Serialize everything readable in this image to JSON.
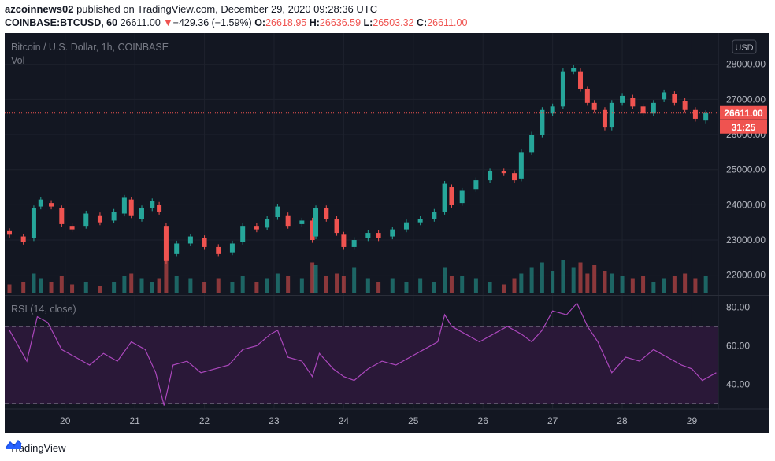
{
  "header": {
    "user": "azcoinnews02",
    "published_text": "published on TradingView.com, December 29, 2020 09:28:36 UTC",
    "symbol": "COINBASE:BTCUSD, 60",
    "last": "26611.00",
    "change_arrow": "▼",
    "change": "−429.36 (−1.59%)",
    "o_label": "O:",
    "o_val": "26618.95",
    "h_label": "H:",
    "h_val": "26636.59",
    "l_label": "L:",
    "l_val": "26503.32",
    "c_label": "C:",
    "c_val": "26611.00"
  },
  "chart_legend": {
    "title": "Bitcoin / U.S. Dollar, 1h, COINBASE",
    "vol": "Vol",
    "rsi": "RSI (14, close)",
    "currency_badge": "USD"
  },
  "price_tags": {
    "last": "26611.00",
    "countdown": "31:25"
  },
  "footer": {
    "brand": "TradingView",
    "logo_icon": "tradingview-logo-icon"
  },
  "colors": {
    "background": "#131722",
    "up": "#26a69a",
    "down": "#ef5350",
    "rsi_line": "#ab47bc",
    "rsi_band": "#2a1838",
    "axis_text": "#b2b5be"
  },
  "chart_data": [
    {
      "type": "candlestick",
      "title": "Bitcoin / U.S. Dollar, 1h, COINBASE",
      "x_ticks": [
        "20",
        "21",
        "22",
        "23",
        "24",
        "25",
        "26",
        "27",
        "28",
        "29"
      ],
      "y_ticks": [
        "22000.00",
        "23000.00",
        "24000.00",
        "25000.00",
        "26000.00",
        "27000.00",
        "28000.00"
      ],
      "ylim": [
        21500,
        28800
      ],
      "last_price": 26611,
      "x_unit": "day (Dec 2020)",
      "points": [
        {
          "d": 19.2,
          "o": 23250,
          "c": 23150
        },
        {
          "d": 19.4,
          "o": 23100,
          "c": 22950
        },
        {
          "d": 19.55,
          "o": 23050,
          "c": 23900
        },
        {
          "d": 19.65,
          "o": 23950,
          "c": 24150
        },
        {
          "d": 19.8,
          "o": 24050,
          "c": 23950
        },
        {
          "d": 19.95,
          "o": 23900,
          "c": 23450
        },
        {
          "d": 20.1,
          "o": 23400,
          "c": 23300
        },
        {
          "d": 20.3,
          "o": 23400,
          "c": 23750
        },
        {
          "d": 20.5,
          "o": 23700,
          "c": 23500
        },
        {
          "d": 20.7,
          "o": 23550,
          "c": 23800
        },
        {
          "d": 20.85,
          "o": 23750,
          "c": 24200
        },
        {
          "d": 20.95,
          "o": 24150,
          "c": 23700
        },
        {
          "d": 21.1,
          "o": 23600,
          "c": 23900
        },
        {
          "d": 21.25,
          "o": 23900,
          "c": 24100
        },
        {
          "d": 21.35,
          "o": 24000,
          "c": 23800
        },
        {
          "d": 21.45,
          "o": 23400,
          "c": 22400
        },
        {
          "d": 21.6,
          "o": 22600,
          "c": 22900
        },
        {
          "d": 21.8,
          "o": 22900,
          "c": 23100
        },
        {
          "d": 22.0,
          "o": 23050,
          "c": 22800
        },
        {
          "d": 22.2,
          "o": 22800,
          "c": 22600
        },
        {
          "d": 22.4,
          "o": 22650,
          "c": 22900
        },
        {
          "d": 22.55,
          "o": 22950,
          "c": 23400
        },
        {
          "d": 22.75,
          "o": 23400,
          "c": 23300
        },
        {
          "d": 22.9,
          "o": 23350,
          "c": 23600
        },
        {
          "d": 23.05,
          "o": 23650,
          "c": 23950
        },
        {
          "d": 23.2,
          "o": 23700,
          "c": 23400
        },
        {
          "d": 23.4,
          "o": 23450,
          "c": 23550
        },
        {
          "d": 23.55,
          "o": 23550,
          "c": 23000
        },
        {
          "d": 23.6,
          "o": 23100,
          "c": 23900
        },
        {
          "d": 23.75,
          "o": 23900,
          "c": 23600
        },
        {
          "d": 23.9,
          "o": 23600,
          "c": 23200
        },
        {
          "d": 24.0,
          "o": 23150,
          "c": 22800
        },
        {
          "d": 24.15,
          "o": 22800,
          "c": 23000
        },
        {
          "d": 24.35,
          "o": 23050,
          "c": 23200
        },
        {
          "d": 24.5,
          "o": 23200,
          "c": 23050
        },
        {
          "d": 24.7,
          "o": 23100,
          "c": 23300
        },
        {
          "d": 24.9,
          "o": 23300,
          "c": 23500
        },
        {
          "d": 25.1,
          "o": 23500,
          "c": 23600
        },
        {
          "d": 25.3,
          "o": 23600,
          "c": 23800
        },
        {
          "d": 25.45,
          "o": 23800,
          "c": 24600
        },
        {
          "d": 25.55,
          "o": 24500,
          "c": 24000
        },
        {
          "d": 25.7,
          "o": 24050,
          "c": 24400
        },
        {
          "d": 25.9,
          "o": 24450,
          "c": 24700
        },
        {
          "d": 26.1,
          "o": 24700,
          "c": 24950
        },
        {
          "d": 26.3,
          "o": 24950,
          "c": 24900
        },
        {
          "d": 26.45,
          "o": 24900,
          "c": 24700
        },
        {
          "d": 26.55,
          "o": 24750,
          "c": 25500
        },
        {
          "d": 26.7,
          "o": 25500,
          "c": 26000
        },
        {
          "d": 26.85,
          "o": 26000,
          "c": 26700
        },
        {
          "d": 27.0,
          "o": 26600,
          "c": 26800
        },
        {
          "d": 27.15,
          "o": 26800,
          "c": 27800
        },
        {
          "d": 27.3,
          "o": 27800,
          "c": 27900
        },
        {
          "d": 27.4,
          "o": 27800,
          "c": 27300
        },
        {
          "d": 27.5,
          "o": 27300,
          "c": 26900
        },
        {
          "d": 27.6,
          "o": 26900,
          "c": 26700
        },
        {
          "d": 27.75,
          "o": 26700,
          "c": 26200
        },
        {
          "d": 27.85,
          "o": 26200,
          "c": 26900
        },
        {
          "d": 28.0,
          "o": 26900,
          "c": 27100
        },
        {
          "d": 28.15,
          "o": 27050,
          "c": 26800
        },
        {
          "d": 28.3,
          "o": 26800,
          "c": 26600
        },
        {
          "d": 28.45,
          "o": 26600,
          "c": 26900
        },
        {
          "d": 28.6,
          "o": 27000,
          "c": 27200
        },
        {
          "d": 28.75,
          "o": 27150,
          "c": 26900
        },
        {
          "d": 28.9,
          "o": 26950,
          "c": 26700
        },
        {
          "d": 29.05,
          "o": 26700,
          "c": 26450
        },
        {
          "d": 29.2,
          "o": 26400,
          "c": 26611
        }
      ]
    },
    {
      "type": "bar",
      "title": "Vol",
      "description_values": "relative volume 0-1",
      "values": [
        0.15,
        0.2,
        0.35,
        0.25,
        0.2,
        0.3,
        0.15,
        0.2,
        0.12,
        0.2,
        0.3,
        0.35,
        0.25,
        0.2,
        0.25,
        0.6,
        0.3,
        0.25,
        0.2,
        0.25,
        0.2,
        0.3,
        0.2,
        0.25,
        0.35,
        0.3,
        0.25,
        0.55,
        0.5,
        0.3,
        0.35,
        0.3,
        0.45,
        0.25,
        0.2,
        0.25,
        0.2,
        0.25,
        0.2,
        0.45,
        0.3,
        0.3,
        0.25,
        0.2,
        0.15,
        0.25,
        0.35,
        0.45,
        0.55,
        0.4,
        0.6,
        0.45,
        0.55,
        0.35,
        0.5,
        0.4,
        0.35,
        0.3,
        0.25,
        0.3,
        0.2,
        0.25,
        0.3,
        0.35,
        0.25,
        0.3
      ]
    },
    {
      "type": "line",
      "title": "RSI (14, close)",
      "y_ticks": [
        "40.00",
        "60.00",
        "80.00"
      ],
      "ylim": [
        28,
        85
      ],
      "bands": [
        30,
        70
      ],
      "x": [
        19.2,
        19.45,
        19.6,
        19.75,
        19.95,
        20.15,
        20.35,
        20.55,
        20.75,
        20.95,
        21.15,
        21.3,
        21.42,
        21.55,
        21.75,
        21.95,
        22.15,
        22.35,
        22.55,
        22.75,
        22.95,
        23.05,
        23.2,
        23.4,
        23.55,
        23.65,
        23.85,
        24.0,
        24.15,
        24.35,
        24.55,
        24.75,
        24.95,
        25.15,
        25.35,
        25.45,
        25.55,
        25.75,
        25.95,
        26.15,
        26.35,
        26.55,
        26.7,
        26.85,
        27.0,
        27.2,
        27.35,
        27.5,
        27.65,
        27.85,
        28.05,
        28.25,
        28.45,
        28.65,
        28.85,
        29.0,
        29.15,
        29.35
      ],
      "y": [
        68,
        52,
        75,
        72,
        58,
        54,
        50,
        56,
        52,
        62,
        58,
        46,
        29,
        50,
        52,
        46,
        48,
        50,
        58,
        60,
        66,
        68,
        54,
        52,
        44,
        56,
        48,
        44,
        42,
        48,
        52,
        50,
        54,
        58,
        62,
        76,
        70,
        66,
        62,
        66,
        70,
        66,
        62,
        68,
        78,
        76,
        82,
        70,
        62,
        46,
        54,
        52,
        58,
        54,
        50,
        48,
        42,
        46
      ]
    }
  ]
}
